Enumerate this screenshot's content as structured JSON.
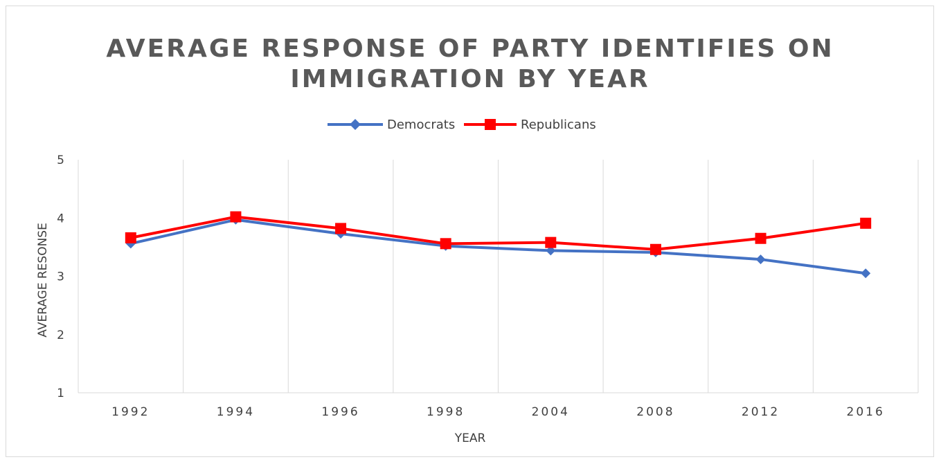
{
  "chart_data": {
    "type": "line",
    "title_lines": [
      "AVERAGE RESPONSE OF PARTY IDENTIFIES ON",
      "IMMIGRATION BY YEAR"
    ],
    "xlabel": "YEAR",
    "ylabel": "AVERAGE RESONSE",
    "categories": [
      "1992",
      "1994",
      "1996",
      "1998",
      "2004",
      "2008",
      "2012",
      "2016"
    ],
    "y_ticks": [
      "1",
      "2",
      "3",
      "4",
      "5"
    ],
    "ylim": [
      1,
      5
    ],
    "legend_position": "top-center",
    "grid": "vertical",
    "series": [
      {
        "name": "Democrats",
        "color": "#4472c4",
        "marker": "diamond",
        "values": [
          3.56,
          3.97,
          3.73,
          3.52,
          3.44,
          3.41,
          3.29,
          3.05
        ]
      },
      {
        "name": "Republicans",
        "color": "#ff0000",
        "marker": "square",
        "values": [
          3.66,
          4.02,
          3.82,
          3.56,
          3.58,
          3.46,
          3.65,
          3.91
        ]
      }
    ]
  }
}
